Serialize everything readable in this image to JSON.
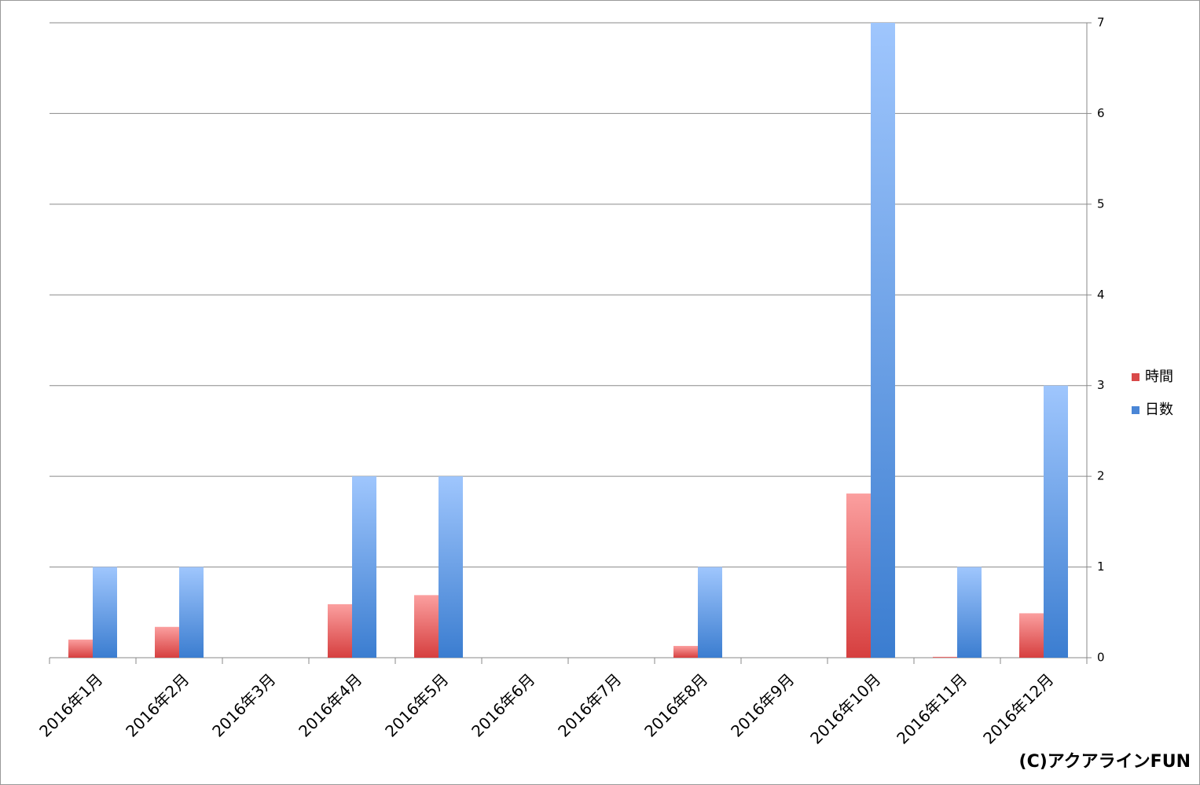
{
  "chart_data": {
    "type": "bar",
    "categories": [
      "2016年1月",
      "2016年2月",
      "2016年3月",
      "2016年4月",
      "2016年5月",
      "2016年6月",
      "2016年7月",
      "2016年8月",
      "2016年9月",
      "2016年10月",
      "2016年11月",
      "2016年12月"
    ],
    "series": [
      {
        "name": "時間",
        "color": "#d94a4a",
        "values": [
          0.2,
          0.34,
          0,
          0.59,
          0.69,
          0,
          0,
          0.13,
          0,
          1.81,
          0.01,
          0.49
        ]
      },
      {
        "name": "日数",
        "color": "#4a86d6",
        "values": [
          1,
          1,
          0,
          2,
          2,
          0,
          0,
          1,
          0,
          7,
          1,
          3
        ]
      }
    ],
    "ylim": [
      0,
      7
    ],
    "yticks": [
      0,
      1,
      2,
      3,
      4,
      5,
      6,
      7
    ],
    "grid": true,
    "y_axis_side": "right",
    "legend": "right",
    "annotation": "(C)アクアラインFUN"
  }
}
